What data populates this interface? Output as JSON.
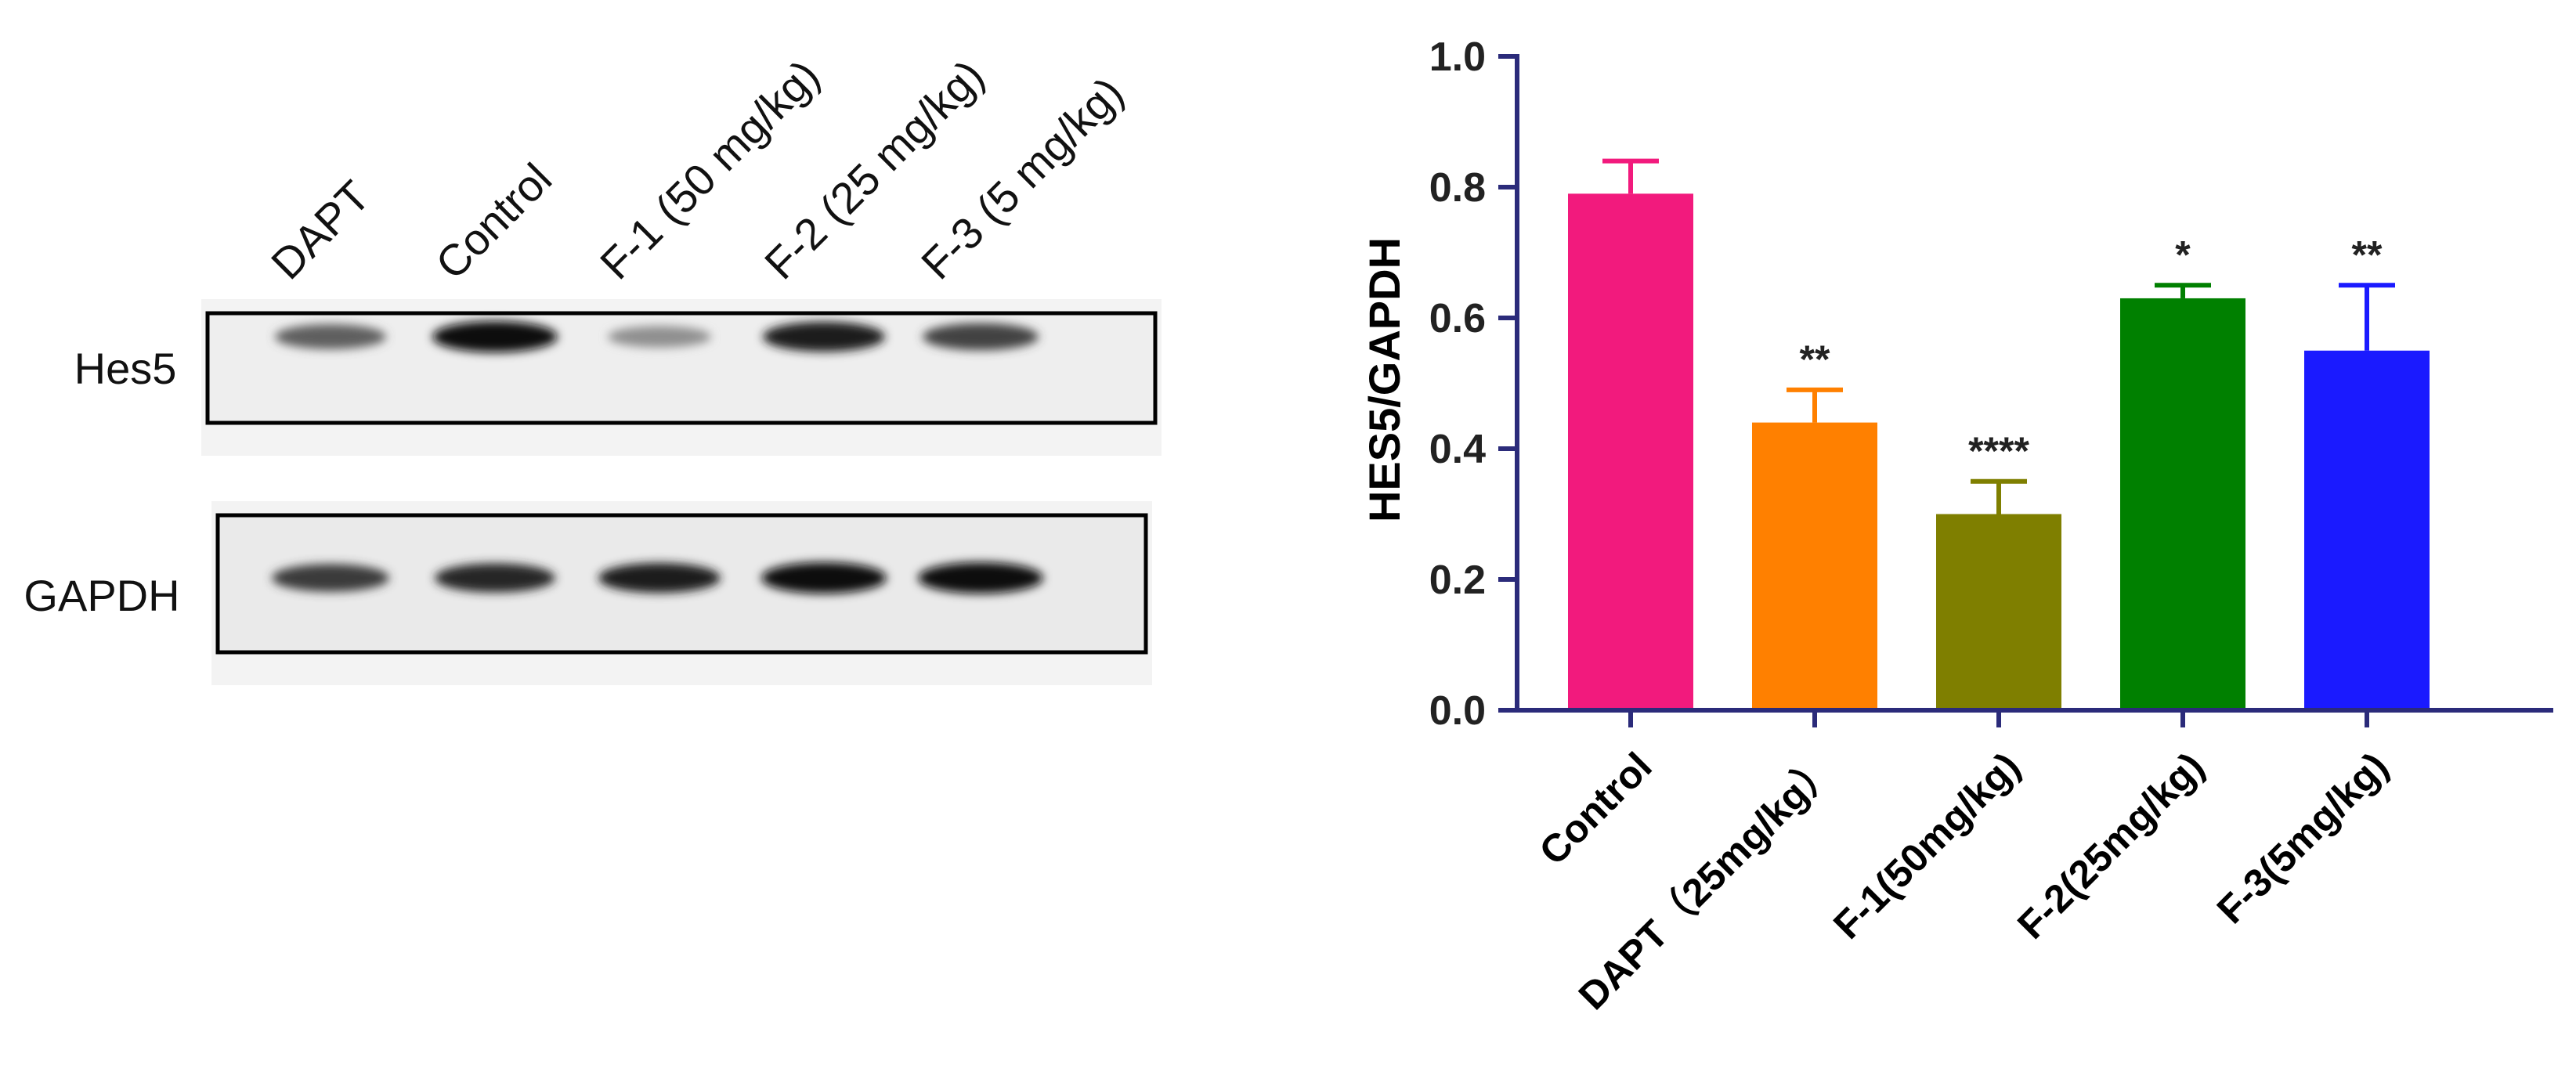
{
  "blot": {
    "lanes": [
      "DAPT",
      "Control",
      "F-1 (50 mg/kg)",
      "F-2 (25 mg/kg)",
      "F-3 (5 mg/kg)"
    ],
    "rows": [
      {
        "label": "Hes5",
        "intensity": [
          0.55,
          1.0,
          0.3,
          0.9,
          0.7
        ]
      },
      {
        "label": "GAPDH",
        "intensity": [
          0.75,
          0.85,
          0.9,
          1.0,
          1.0
        ]
      }
    ]
  },
  "chart_data": {
    "type": "bar",
    "ylabel": "HES5/GAPDH",
    "xlabel": "",
    "ylim": [
      0.0,
      1.0
    ],
    "yticks": [
      "0.0",
      "0.2",
      "0.4",
      "0.6",
      "0.8",
      "1.0"
    ],
    "categories": [
      "Control",
      "DAPT（25mg/kg）",
      "F-1(50mg/kg)",
      "F-2(25mg/kg)",
      "F-3(5mg/kg)"
    ],
    "values": [
      0.79,
      0.44,
      0.3,
      0.63,
      0.55
    ],
    "errors": [
      0.05,
      0.05,
      0.05,
      0.02,
      0.1
    ],
    "significance": [
      "",
      "**",
      "****",
      "*",
      "**"
    ],
    "colors": [
      "#f21a7d",
      "#ff8000",
      "#7f7f00",
      "#008000",
      "#1a1aff"
    ],
    "axis_color": "#2b2b7a"
  }
}
